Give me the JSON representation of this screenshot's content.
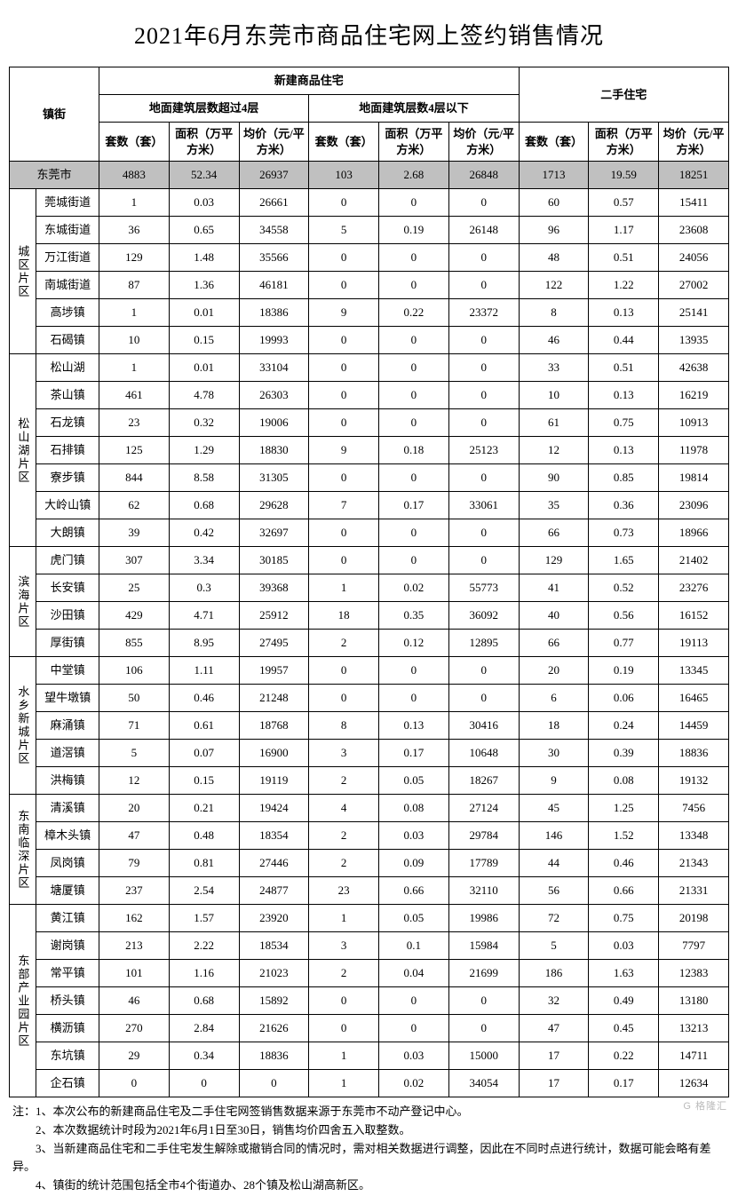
{
  "title": "2021年6月东莞市商品住宅网上签约销售情况",
  "header": {
    "town": "镇街",
    "group_new": "新建商品住宅",
    "group_secondhand": "二手住宅",
    "sub_over4": "地面建筑层数超过4层",
    "sub_under4": "地面建筑层数4层以下",
    "col_count": "套数（套）",
    "col_area": "面积（万平方米）",
    "col_price": "均价（元/平方米）"
  },
  "highlight_bg": "#c0c0c0",
  "summary": {
    "name": "东莞市",
    "over4": {
      "count": "4883",
      "area": "52.34",
      "price": "26937"
    },
    "under4": {
      "count": "103",
      "area": "2.68",
      "price": "26848"
    },
    "secondhand": {
      "count": "1713",
      "area": "19.59",
      "price": "18251"
    }
  },
  "regions": [
    {
      "name": "城区片区",
      "towns": [
        {
          "name": "莞城街道",
          "over4": {
            "count": "1",
            "area": "0.03",
            "price": "26661"
          },
          "under4": {
            "count": "0",
            "area": "0",
            "price": "0"
          },
          "secondhand": {
            "count": "60",
            "area": "0.57",
            "price": "15411"
          }
        },
        {
          "name": "东城街道",
          "over4": {
            "count": "36",
            "area": "0.65",
            "price": "34558"
          },
          "under4": {
            "count": "5",
            "area": "0.19",
            "price": "26148"
          },
          "secondhand": {
            "count": "96",
            "area": "1.17",
            "price": "23608"
          }
        },
        {
          "name": "万江街道",
          "over4": {
            "count": "129",
            "area": "1.48",
            "price": "35566"
          },
          "under4": {
            "count": "0",
            "area": "0",
            "price": "0"
          },
          "secondhand": {
            "count": "48",
            "area": "0.51",
            "price": "24056"
          }
        },
        {
          "name": "南城街道",
          "over4": {
            "count": "87",
            "area": "1.36",
            "price": "46181"
          },
          "under4": {
            "count": "0",
            "area": "0",
            "price": "0"
          },
          "secondhand": {
            "count": "122",
            "area": "1.22",
            "price": "27002"
          }
        },
        {
          "name": "高埗镇",
          "over4": {
            "count": "1",
            "area": "0.01",
            "price": "18386"
          },
          "under4": {
            "count": "9",
            "area": "0.22",
            "price": "23372"
          },
          "secondhand": {
            "count": "8",
            "area": "0.13",
            "price": "25141"
          }
        },
        {
          "name": "石碣镇",
          "over4": {
            "count": "10",
            "area": "0.15",
            "price": "19993"
          },
          "under4": {
            "count": "0",
            "area": "0",
            "price": "0"
          },
          "secondhand": {
            "count": "46",
            "area": "0.44",
            "price": "13935"
          }
        }
      ]
    },
    {
      "name": "松山湖片区",
      "towns": [
        {
          "name": "松山湖",
          "over4": {
            "count": "1",
            "area": "0.01",
            "price": "33104"
          },
          "under4": {
            "count": "0",
            "area": "0",
            "price": "0"
          },
          "secondhand": {
            "count": "33",
            "area": "0.51",
            "price": "42638"
          }
        },
        {
          "name": "茶山镇",
          "over4": {
            "count": "461",
            "area": "4.78",
            "price": "26303"
          },
          "under4": {
            "count": "0",
            "area": "0",
            "price": "0"
          },
          "secondhand": {
            "count": "10",
            "area": "0.13",
            "price": "16219"
          }
        },
        {
          "name": "石龙镇",
          "over4": {
            "count": "23",
            "area": "0.32",
            "price": "19006"
          },
          "under4": {
            "count": "0",
            "area": "0",
            "price": "0"
          },
          "secondhand": {
            "count": "61",
            "area": "0.75",
            "price": "10913"
          }
        },
        {
          "name": "石排镇",
          "over4": {
            "count": "125",
            "area": "1.29",
            "price": "18830"
          },
          "under4": {
            "count": "9",
            "area": "0.18",
            "price": "25123"
          },
          "secondhand": {
            "count": "12",
            "area": "0.13",
            "price": "11978"
          }
        },
        {
          "name": "寮步镇",
          "over4": {
            "count": "844",
            "area": "8.58",
            "price": "31305"
          },
          "under4": {
            "count": "0",
            "area": "0",
            "price": "0"
          },
          "secondhand": {
            "count": "90",
            "area": "0.85",
            "price": "19814"
          }
        },
        {
          "name": "大岭山镇",
          "over4": {
            "count": "62",
            "area": "0.68",
            "price": "29628"
          },
          "under4": {
            "count": "7",
            "area": "0.17",
            "price": "33061"
          },
          "secondhand": {
            "count": "35",
            "area": "0.36",
            "price": "23096"
          }
        },
        {
          "name": "大朗镇",
          "over4": {
            "count": "39",
            "area": "0.42",
            "price": "32697"
          },
          "under4": {
            "count": "0",
            "area": "0",
            "price": "0"
          },
          "secondhand": {
            "count": "66",
            "area": "0.73",
            "price": "18966"
          }
        }
      ]
    },
    {
      "name": "滨海片区",
      "towns": [
        {
          "name": "虎门镇",
          "over4": {
            "count": "307",
            "area": "3.34",
            "price": "30185"
          },
          "under4": {
            "count": "0",
            "area": "0",
            "price": "0"
          },
          "secondhand": {
            "count": "129",
            "area": "1.65",
            "price": "21402"
          }
        },
        {
          "name": "长安镇",
          "over4": {
            "count": "25",
            "area": "0.3",
            "price": "39368"
          },
          "under4": {
            "count": "1",
            "area": "0.02",
            "price": "55773"
          },
          "secondhand": {
            "count": "41",
            "area": "0.52",
            "price": "23276"
          }
        },
        {
          "name": "沙田镇",
          "over4": {
            "count": "429",
            "area": "4.71",
            "price": "25912"
          },
          "under4": {
            "count": "18",
            "area": "0.35",
            "price": "36092"
          },
          "secondhand": {
            "count": "40",
            "area": "0.56",
            "price": "16152"
          }
        },
        {
          "name": "厚街镇",
          "over4": {
            "count": "855",
            "area": "8.95",
            "price": "27495"
          },
          "under4": {
            "count": "2",
            "area": "0.12",
            "price": "12895"
          },
          "secondhand": {
            "count": "66",
            "area": "0.77",
            "price": "19113"
          }
        }
      ]
    },
    {
      "name": "水乡新城片区",
      "towns": [
        {
          "name": "中堂镇",
          "over4": {
            "count": "106",
            "area": "1.11",
            "price": "19957"
          },
          "under4": {
            "count": "0",
            "area": "0",
            "price": "0"
          },
          "secondhand": {
            "count": "20",
            "area": "0.19",
            "price": "13345"
          }
        },
        {
          "name": "望牛墩镇",
          "over4": {
            "count": "50",
            "area": "0.46",
            "price": "21248"
          },
          "under4": {
            "count": "0",
            "area": "0",
            "price": "0"
          },
          "secondhand": {
            "count": "6",
            "area": "0.06",
            "price": "16465"
          }
        },
        {
          "name": "麻涌镇",
          "over4": {
            "count": "71",
            "area": "0.61",
            "price": "18768"
          },
          "under4": {
            "count": "8",
            "area": "0.13",
            "price": "30416"
          },
          "secondhand": {
            "count": "18",
            "area": "0.24",
            "price": "14459"
          }
        },
        {
          "name": "道滘镇",
          "over4": {
            "count": "5",
            "area": "0.07",
            "price": "16900"
          },
          "under4": {
            "count": "3",
            "area": "0.17",
            "price": "10648"
          },
          "secondhand": {
            "count": "30",
            "area": "0.39",
            "price": "18836"
          }
        },
        {
          "name": "洪梅镇",
          "over4": {
            "count": "12",
            "area": "0.15",
            "price": "19119"
          },
          "under4": {
            "count": "2",
            "area": "0.05",
            "price": "18267"
          },
          "secondhand": {
            "count": "9",
            "area": "0.08",
            "price": "19132"
          }
        }
      ]
    },
    {
      "name": "东南临深片区",
      "towns": [
        {
          "name": "清溪镇",
          "over4": {
            "count": "20",
            "area": "0.21",
            "price": "19424"
          },
          "under4": {
            "count": "4",
            "area": "0.08",
            "price": "27124"
          },
          "secondhand": {
            "count": "45",
            "area": "1.25",
            "price": "7456"
          }
        },
        {
          "name": "樟木头镇",
          "over4": {
            "count": "47",
            "area": "0.48",
            "price": "18354"
          },
          "under4": {
            "count": "2",
            "area": "0.03",
            "price": "29784"
          },
          "secondhand": {
            "count": "146",
            "area": "1.52",
            "price": "13348"
          }
        },
        {
          "name": "凤岗镇",
          "over4": {
            "count": "79",
            "area": "0.81",
            "price": "27446"
          },
          "under4": {
            "count": "2",
            "area": "0.09",
            "price": "17789"
          },
          "secondhand": {
            "count": "44",
            "area": "0.46",
            "price": "21343"
          }
        },
        {
          "name": "塘厦镇",
          "over4": {
            "count": "237",
            "area": "2.54",
            "price": "24877"
          },
          "under4": {
            "count": "23",
            "area": "0.66",
            "price": "32110"
          },
          "secondhand": {
            "count": "56",
            "area": "0.66",
            "price": "21331"
          }
        }
      ]
    },
    {
      "name": "东部产业园片区",
      "towns": [
        {
          "name": "黄江镇",
          "over4": {
            "count": "162",
            "area": "1.57",
            "price": "23920"
          },
          "under4": {
            "count": "1",
            "area": "0.05",
            "price": "19986"
          },
          "secondhand": {
            "count": "72",
            "area": "0.75",
            "price": "20198"
          }
        },
        {
          "name": "谢岗镇",
          "over4": {
            "count": "213",
            "area": "2.22",
            "price": "18534"
          },
          "under4": {
            "count": "3",
            "area": "0.1",
            "price": "15984"
          },
          "secondhand": {
            "count": "5",
            "area": "0.03",
            "price": "7797"
          }
        },
        {
          "name": "常平镇",
          "over4": {
            "count": "101",
            "area": "1.16",
            "price": "21023"
          },
          "under4": {
            "count": "2",
            "area": "0.04",
            "price": "21699"
          },
          "secondhand": {
            "count": "186",
            "area": "1.63",
            "price": "12383"
          }
        },
        {
          "name": "桥头镇",
          "over4": {
            "count": "46",
            "area": "0.68",
            "price": "15892"
          },
          "under4": {
            "count": "0",
            "area": "0",
            "price": "0"
          },
          "secondhand": {
            "count": "32",
            "area": "0.49",
            "price": "13180"
          }
        },
        {
          "name": "横沥镇",
          "over4": {
            "count": "270",
            "area": "2.84",
            "price": "21626"
          },
          "under4": {
            "count": "0",
            "area": "0",
            "price": "0"
          },
          "secondhand": {
            "count": "47",
            "area": "0.45",
            "price": "13213"
          }
        },
        {
          "name": "东坑镇",
          "over4": {
            "count": "29",
            "area": "0.34",
            "price": "18836"
          },
          "under4": {
            "count": "1",
            "area": "0.03",
            "price": "15000"
          },
          "secondhand": {
            "count": "17",
            "area": "0.22",
            "price": "14711"
          }
        },
        {
          "name": "企石镇",
          "over4": {
            "count": "0",
            "area": "0",
            "price": "0"
          },
          "under4": {
            "count": "1",
            "area": "0.02",
            "price": "34054"
          },
          "secondhand": {
            "count": "17",
            "area": "0.17",
            "price": "12634"
          }
        }
      ]
    }
  ],
  "notes": [
    "注：1、本次公布的新建商品住宅及二手住宅网签销售数据来源于东莞市不动产登记中心。",
    "　　2、本次数据统计时段为2021年6月1日至30日，销售均价四舍五入取整数。",
    "　　3、当新建商品住宅和二手住宅发生解除或撤销合同的情况时，需对相关数据进行调整，因此在不同时点进行统计，数据可能会略有差异。",
    "　　4、镇街的统计范围包括全市4个街道办、28个镇及松山湖高新区。"
  ],
  "watermark": "G 格隆汇"
}
